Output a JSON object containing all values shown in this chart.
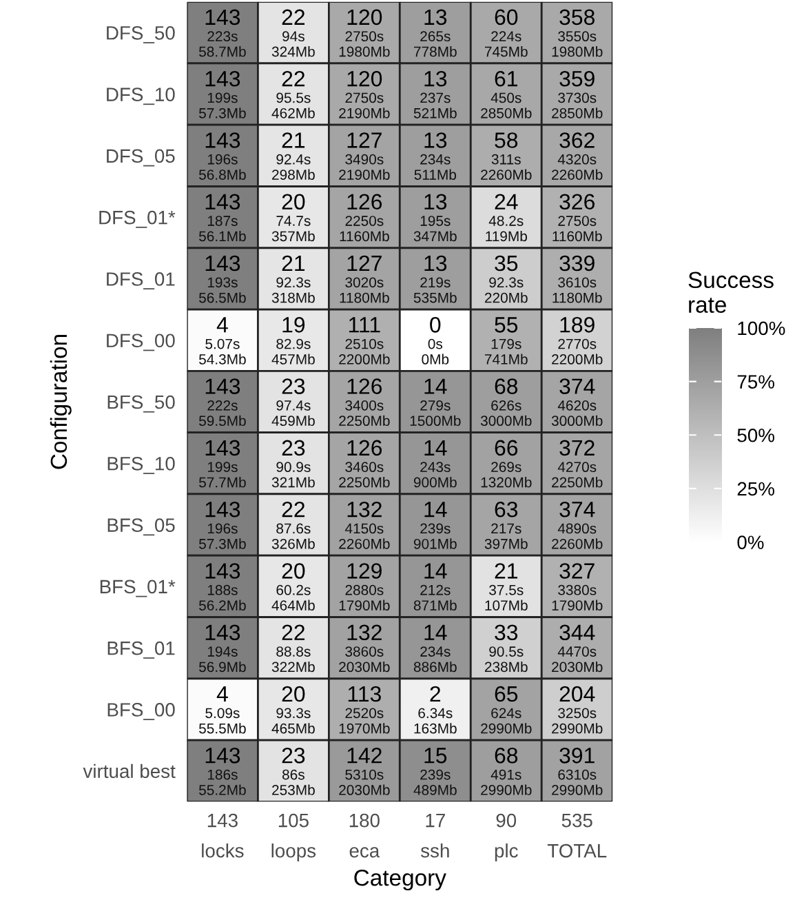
{
  "chart_data": {
    "type": "heatmap",
    "xlabel": "Category",
    "ylabel": "Configuration",
    "clabel": "Success\nrate",
    "categories": [
      "143\nlocks",
      "105\nloops",
      "180\neca",
      "17\nssh",
      "90\nplc",
      "535\nTOTAL"
    ],
    "y_categories": [
      "DFS_50",
      "DFS_10",
      "DFS_05",
      "DFS_01*",
      "DFS_01",
      "DFS_00",
      "BFS_50",
      "BFS_10",
      "BFS_05",
      "BFS_01*",
      "BFS_01",
      "BFS_00",
      "virtual best"
    ],
    "cells": [
      [
        100,
        21,
        67,
        76,
        67,
        67
      ],
      [
        100,
        21,
        67,
        76,
        68,
        67
      ],
      [
        100,
        20,
        71,
        76,
        64,
        68
      ],
      [
        100,
        19,
        70,
        76,
        27,
        61
      ],
      [
        100,
        20,
        71,
        76,
        39,
        63
      ],
      [
        3,
        18,
        62,
        0,
        61,
        35
      ],
      [
        100,
        22,
        70,
        82,
        76,
        70
      ],
      [
        100,
        22,
        70,
        82,
        73,
        70
      ],
      [
        100,
        21,
        73,
        82,
        70,
        70
      ],
      [
        100,
        19,
        72,
        82,
        23,
        61
      ],
      [
        100,
        21,
        73,
        82,
        37,
        64
      ],
      [
        3,
        19,
        63,
        12,
        72,
        38
      ],
      [
        100,
        22,
        79,
        88,
        76,
        73
      ]
    ],
    "cell_labels": [
      [
        "143\n223s\n58.7Mb",
        "22\n94s\n324Mb",
        "120\n2750s\n1980Mb",
        "13\n265s\n778Mb",
        "60\n224s\n745Mb",
        "358\n3550s\n1980Mb"
      ],
      [
        "143\n199s\n57.3Mb",
        "22\n95.5s\n462Mb",
        "120\n2750s\n2190Mb",
        "13\n237s\n521Mb",
        "61\n450s\n2850Mb",
        "359\n3730s\n2850Mb"
      ],
      [
        "143\n196s\n56.8Mb",
        "21\n92.4s\n298Mb",
        "127\n3490s\n2190Mb",
        "13\n234s\n511Mb",
        "58\n311s\n2260Mb",
        "362\n4320s\n2260Mb"
      ],
      [
        "143\n187s\n56.1Mb",
        "20\n74.7s\n357Mb",
        "126\n2250s\n1160Mb",
        "13\n195s\n347Mb",
        "24\n48.2s\n119Mb",
        "326\n2750s\n1160Mb"
      ],
      [
        "143\n193s\n56.5Mb",
        "21\n92.3s\n318Mb",
        "127\n3020s\n1180Mb",
        "13\n219s\n535Mb",
        "35\n92.3s\n220Mb",
        "339\n3610s\n1180Mb"
      ],
      [
        "4\n5.07s\n54.3Mb",
        "19\n82.9s\n457Mb",
        "111\n2510s\n2200Mb",
        "0\n0s\n0Mb",
        "55\n179s\n741Mb",
        "189\n2770s\n2200Mb"
      ],
      [
        "143\n222s\n59.5Mb",
        "23\n97.4s\n459Mb",
        "126\n3400s\n2250Mb",
        "14\n279s\n1500Mb",
        "68\n626s\n3000Mb",
        "374\n4620s\n3000Mb"
      ],
      [
        "143\n199s\n57.7Mb",
        "23\n90.9s\n321Mb",
        "126\n3460s\n2250Mb",
        "14\n243s\n900Mb",
        "66\n269s\n1320Mb",
        "372\n4270s\n2250Mb"
      ],
      [
        "143\n196s\n57.3Mb",
        "22\n87.6s\n326Mb",
        "132\n4150s\n2260Mb",
        "14\n239s\n901Mb",
        "63\n217s\n397Mb",
        "374\n4890s\n2260Mb"
      ],
      [
        "143\n188s\n56.2Mb",
        "20\n60.2s\n464Mb",
        "129\n2880s\n1790Mb",
        "14\n212s\n871Mb",
        "21\n37.5s\n107Mb",
        "327\n3380s\n1790Mb"
      ],
      [
        "143\n194s\n56.9Mb",
        "22\n88.8s\n322Mb",
        "132\n3860s\n2030Mb",
        "14\n234s\n886Mb",
        "33\n90.5s\n238Mb",
        "344\n4470s\n2030Mb"
      ],
      [
        "4\n5.09s\n55.5Mb",
        "20\n93.3s\n465Mb",
        "113\n2520s\n1970Mb",
        "2\n6.34s\n163Mb",
        "65\n624s\n2990Mb",
        "204\n3250s\n2990Mb"
      ],
      [
        "143\n186s\n55.2Mb",
        "23\n86s\n253Mb",
        "142\n5310s\n2030Mb",
        "15\n239s\n489Mb",
        "68\n491s\n2990Mb",
        "391\n6310s\n2990Mb"
      ]
    ],
    "colors": [
      "#ffffff",
      "#7f7f7f"
    ],
    "clim": [
      0,
      100
    ],
    "cticks": [
      {
        "value": 0,
        "label": "0%"
      },
      {
        "value": 25,
        "label": "25%"
      },
      {
        "value": 50,
        "label": "50%"
      },
      {
        "value": 75,
        "label": "75%"
      },
      {
        "value": 100,
        "label": "100%"
      }
    ]
  }
}
